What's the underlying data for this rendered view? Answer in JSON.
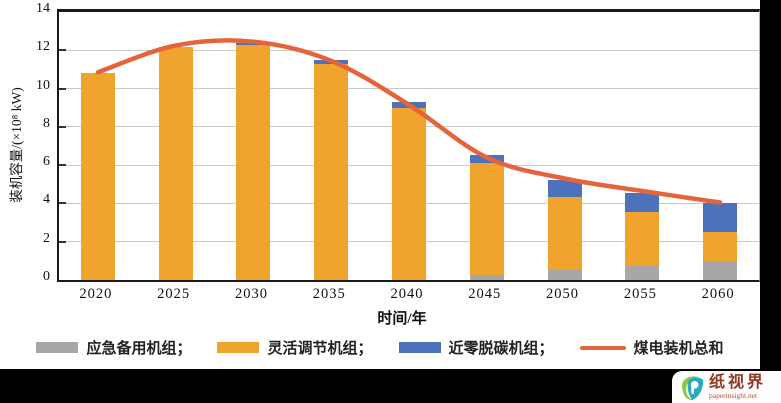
{
  "chart_data": {
    "type": "bar",
    "stacked": true,
    "overlay": "line",
    "title": "",
    "xlabel": "时间/年",
    "ylabel": "装机容量/(×10⁸ kW)",
    "ylim": [
      0,
      14
    ],
    "y_ticks": [
      0,
      2,
      4,
      6,
      8,
      10,
      12,
      14
    ],
    "grid": true,
    "legend_position": "bottom",
    "categories": [
      "2020",
      "2025",
      "2030",
      "2035",
      "2040",
      "2045",
      "2050",
      "2055",
      "2060"
    ],
    "series": [
      {
        "name": "应急备用机组",
        "color": "#a7a7a7",
        "values": [
          0,
          0,
          0,
          0,
          0,
          0.25,
          0.5,
          0.8,
          1.0
        ]
      },
      {
        "name": "灵活调节机组",
        "color": "#f0a42e",
        "values": [
          10.8,
          12.15,
          12.3,
          11.3,
          9.0,
          5.85,
          3.85,
          2.75,
          1.5
        ]
      },
      {
        "name": "近零脱碳机组",
        "color": "#4c72bc",
        "values": [
          0,
          0,
          0.1,
          0.2,
          0.3,
          0.45,
          0.85,
          1.0,
          1.5
        ]
      }
    ],
    "line_series": {
      "name": "煤电装机总和",
      "color": "#e4653c",
      "values": [
        10.85,
        12.25,
        12.45,
        11.45,
        9.15,
        6.4,
        5.3,
        4.65,
        4.05
      ]
    }
  },
  "axes": {
    "x_label": "时间/年",
    "y_label": "装机容量/(×10⁸ kW)"
  },
  "legend": {
    "items": [
      {
        "label": "应急备用机组；",
        "swatch": "rect",
        "color": "#a7a7a7"
      },
      {
        "label": "灵活调节机组；",
        "swatch": "rect",
        "color": "#f0a42e"
      },
      {
        "label": "近零脱碳机组；",
        "swatch": "rect",
        "color": "#4c72bc"
      },
      {
        "label": "煤电装机总和",
        "swatch": "line",
        "color": "#e4653c"
      }
    ]
  },
  "watermark": {
    "brand": "纸视界",
    "domain": "paperinsight.net"
  }
}
